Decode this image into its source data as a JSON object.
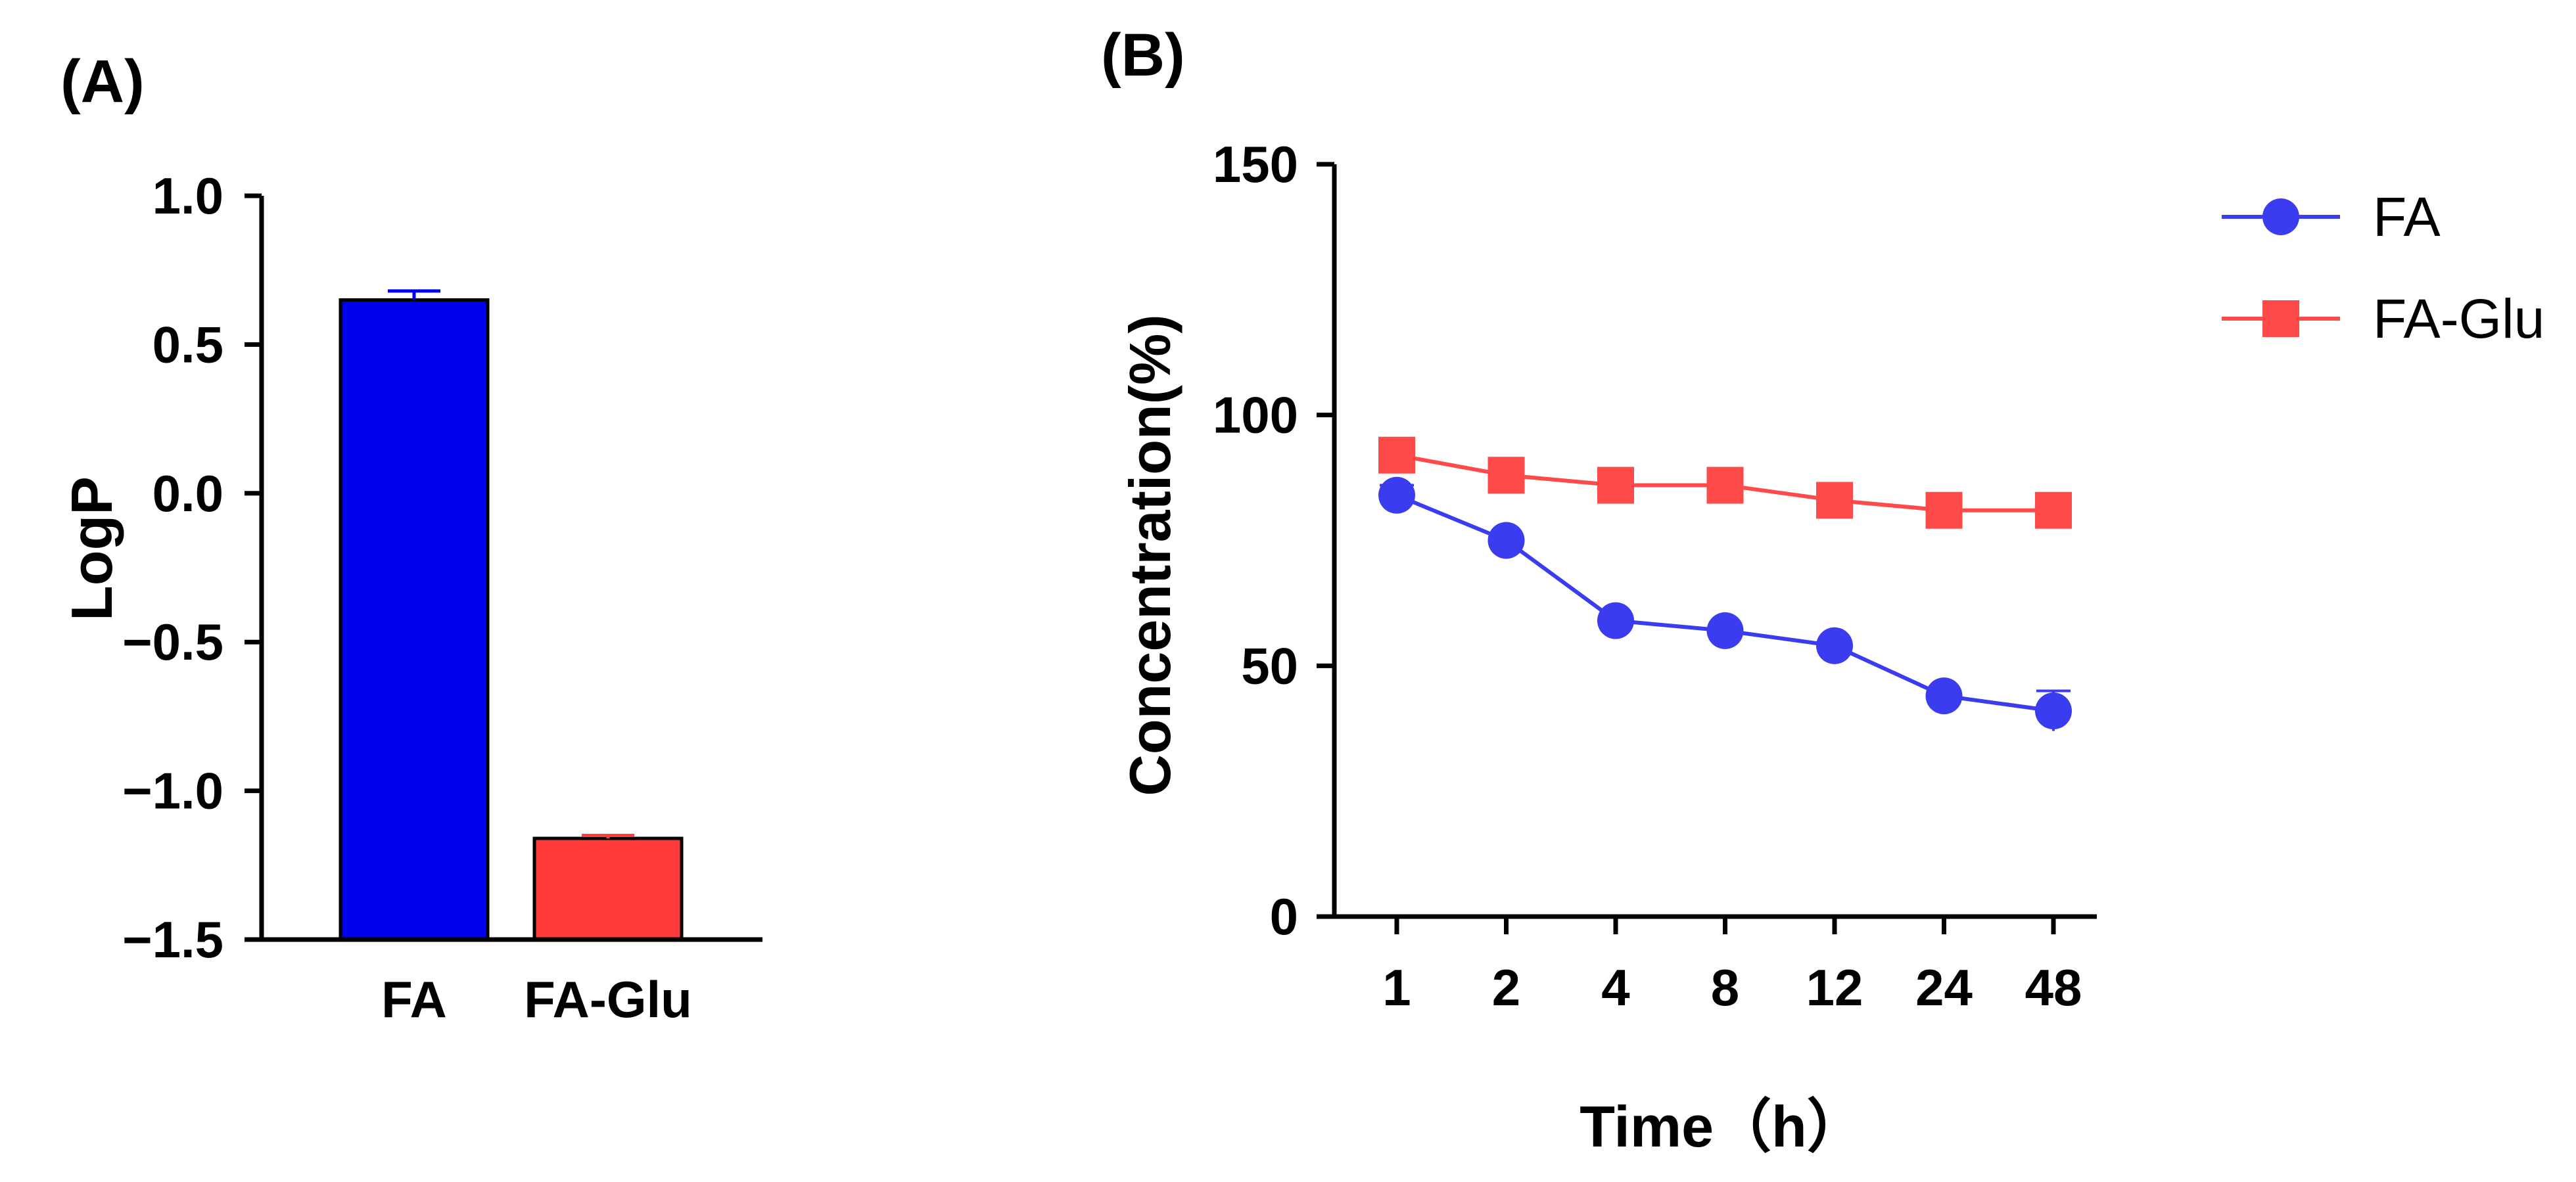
{
  "chart_data": [
    {
      "panel": "(A)",
      "type": "bar",
      "ylabel": "LogP",
      "xlabel": "",
      "ylim": [
        -1.5,
        1.0
      ],
      "yticks": [
        "1.0",
        "0.5",
        "0.0",
        "−0.5",
        "−1.0",
        "−1.5"
      ],
      "ytick_values": [
        1.0,
        0.5,
        0.0,
        -0.5,
        -1.0,
        -1.5
      ],
      "categories": [
        "FA",
        "FA-Glu"
      ],
      "values": [
        0.65,
        -1.16
      ],
      "errors": [
        0.03,
        0.01
      ],
      "colors": [
        "#0000f0",
        "#ff3b3b"
      ]
    },
    {
      "panel": "(B)",
      "type": "line",
      "xlabel": "Time（h）",
      "ylabel": "Concentration(%)",
      "ylim": [
        0,
        150
      ],
      "yticks": [
        "150",
        "100",
        "50",
        "0"
      ],
      "ytick_values": [
        150,
        100,
        50,
        0
      ],
      "x": [
        "1",
        "2",
        "4",
        "8",
        "12",
        "24",
        "48"
      ],
      "series": [
        {
          "name": "FA",
          "values": [
            84,
            75,
            59,
            57,
            54,
            44,
            41
          ],
          "errors": [
            2,
            1,
            1,
            1,
            1,
            1,
            4
          ],
          "color": "#3b3bf0",
          "marker": "circle"
        },
        {
          "name": "FA-Glu",
          "values": [
            92,
            88,
            86,
            86,
            83,
            81,
            81
          ],
          "errors": [
            1,
            1,
            1,
            1,
            1,
            1,
            1
          ],
          "color": "#ff4a4a",
          "marker": "square"
        }
      ],
      "legend_position": "top-right"
    }
  ]
}
